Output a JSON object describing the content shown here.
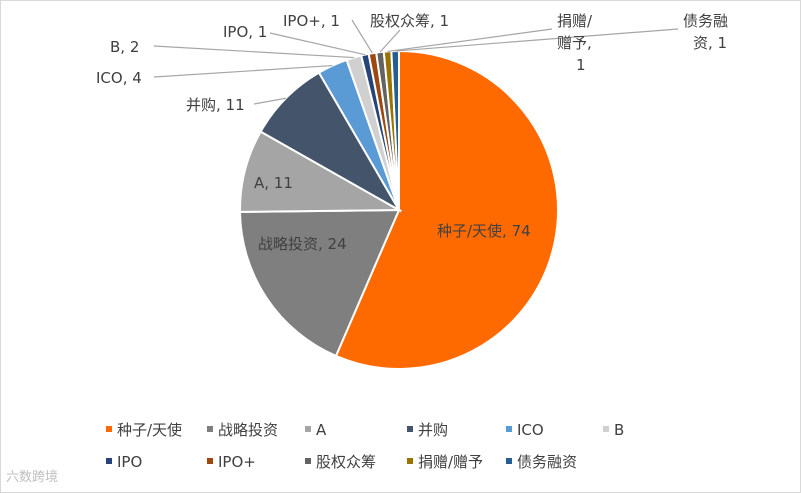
{
  "chart_data": {
    "type": "pie",
    "title": "",
    "legend_position": "bottom",
    "slices": [
      {
        "name": "种子/天使",
        "value": 74,
        "color": "#FF6A00",
        "label": "种子/天使, 74"
      },
      {
        "name": "战略投资",
        "value": 24,
        "color": "#7F7F7F",
        "label": "战略投资, 24"
      },
      {
        "name": "A",
        "value": 11,
        "color": "#A5A5A5",
        "label": "A, 11"
      },
      {
        "name": "并购",
        "value": 11,
        "color": "#44546A",
        "label": "并购, 11"
      },
      {
        "name": "ICO",
        "value": 4,
        "color": "#5B9BD5",
        "label": "ICO, 4"
      },
      {
        "name": "B",
        "value": 2,
        "color": "#D0D0D0",
        "label": "B, 2"
      },
      {
        "name": "IPO",
        "value": 1,
        "color": "#264478",
        "label": "IPO, 1"
      },
      {
        "name": "IPO+",
        "value": 1,
        "color": "#9E480E",
        "label": "IPO+, 1"
      },
      {
        "name": "股权众筹",
        "value": 1,
        "color": "#636363",
        "label": "股权众筹, 1"
      },
      {
        "name": "捐赠/赠予",
        "value": 1,
        "color": "#997300",
        "label": "捐赠/赠予, 1"
      },
      {
        "name": "债务融资",
        "value": 1,
        "color": "#255E91",
        "label": "债务融资, 1"
      }
    ]
  },
  "watermark": "六数跨境"
}
